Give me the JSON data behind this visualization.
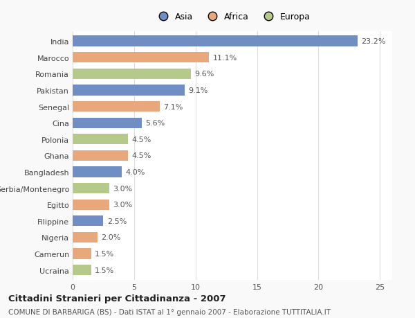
{
  "categories": [
    "India",
    "Marocco",
    "Romania",
    "Pakistan",
    "Senegal",
    "Cina",
    "Polonia",
    "Ghana",
    "Bangladesh",
    "Serbia/Montenegro",
    "Egitto",
    "Filippine",
    "Nigeria",
    "Camerun",
    "Ucraina"
  ],
  "values": [
    23.2,
    11.1,
    9.6,
    9.1,
    7.1,
    5.6,
    4.5,
    4.5,
    4.0,
    3.0,
    3.0,
    2.5,
    2.0,
    1.5,
    1.5
  ],
  "continents": [
    "Asia",
    "Africa",
    "Europa",
    "Asia",
    "Africa",
    "Asia",
    "Europa",
    "Africa",
    "Asia",
    "Europa",
    "Africa",
    "Asia",
    "Africa",
    "Africa",
    "Europa"
  ],
  "colors": {
    "Asia": "#6f8fc4",
    "Africa": "#e8a87c",
    "Europa": "#b5c98a"
  },
  "legend_labels": [
    "Asia",
    "Africa",
    "Europa"
  ],
  "xlim": [
    0,
    26
  ],
  "xticks": [
    0,
    5,
    10,
    15,
    20,
    25
  ],
  "title_main": "Cittadini Stranieri per Cittadinanza - 2007",
  "title_sub": "COMUNE DI BARBARIGA (BS) - Dati ISTAT al 1° gennaio 2007 - Elaborazione TUTTITALIA.IT",
  "bg_color": "#f9f9f9",
  "plot_bg_color": "#ffffff",
  "bar_height": 0.65,
  "label_fontsize": 8,
  "value_fontsize": 8,
  "title_fontsize": 9.5,
  "subtitle_fontsize": 7.5,
  "legend_fontsize": 9
}
